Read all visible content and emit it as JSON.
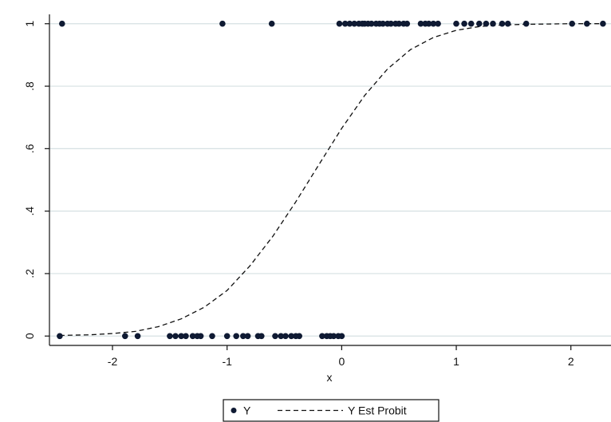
{
  "chart_data": {
    "type": "scatter",
    "xlabel": "x",
    "ylabel": "",
    "xlim": [
      -2.55,
      2.35
    ],
    "ylim": [
      -0.03,
      1.03
    ],
    "x_ticks": [
      -2,
      -1,
      0,
      1,
      2
    ],
    "x_tick_labels": [
      "-2",
      "-1",
      "0",
      "1",
      "2"
    ],
    "y_ticks": [
      0,
      0.2,
      0.4,
      0.6,
      0.8,
      1
    ],
    "y_tick_labels": [
      "0",
      ".2",
      ".4",
      ".6",
      ".8",
      "1"
    ],
    "grid": true,
    "legend_position": "bottom",
    "series": [
      {
        "name": "Y",
        "type": "scatter",
        "color": "#0f1a33",
        "x": [
          -2.44,
          -1.04,
          -0.61,
          -0.02,
          0.03,
          0.07,
          0.11,
          0.15,
          0.18,
          0.2,
          0.23,
          0.26,
          0.3,
          0.33,
          0.36,
          0.4,
          0.43,
          0.47,
          0.5,
          0.54,
          0.57,
          0.69,
          0.73,
          0.76,
          0.8,
          0.84,
          1.0,
          1.07,
          1.13,
          1.2,
          1.26,
          1.32,
          1.4,
          1.45,
          1.61,
          2.01,
          2.14,
          2.28,
          -2.46,
          -1.89,
          -1.78,
          -1.5,
          -1.45,
          -1.4,
          -1.36,
          -1.3,
          -1.26,
          -1.23,
          -1.13,
          -1.0,
          -0.92,
          -0.86,
          -0.82,
          -0.73,
          -0.7,
          -0.58,
          -0.53,
          -0.49,
          -0.44,
          -0.4,
          -0.37,
          -0.17,
          -0.13,
          -0.1,
          -0.07,
          -0.03,
          0.0
        ],
        "y": [
          1,
          1,
          1,
          1,
          1,
          1,
          1,
          1,
          1,
          1,
          1,
          1,
          1,
          1,
          1,
          1,
          1,
          1,
          1,
          1,
          1,
          1,
          1,
          1,
          1,
          1,
          1,
          1,
          1,
          1,
          1,
          1,
          1,
          1,
          1,
          1,
          1,
          1,
          0,
          0,
          0,
          0,
          0,
          0,
          0,
          0,
          0,
          0,
          0,
          0,
          0,
          0,
          0,
          0,
          0,
          0,
          0,
          0,
          0,
          0,
          0,
          0,
          0,
          0,
          0,
          0,
          0
        ]
      },
      {
        "name": "Y Est Probit",
        "type": "line",
        "style": "dashed",
        "color": "#111111",
        "x": [
          -2.46,
          -2.2,
          -2.0,
          -1.8,
          -1.6,
          -1.4,
          -1.2,
          -1.0,
          -0.8,
          -0.6,
          -0.4,
          -0.2,
          0.0,
          0.2,
          0.4,
          0.6,
          0.8,
          1.0,
          1.2,
          1.4,
          1.6,
          1.8,
          2.0,
          2.2,
          2.3
        ],
        "y": [
          0.002,
          0.004,
          0.008,
          0.015,
          0.03,
          0.055,
          0.092,
          0.146,
          0.225,
          0.32,
          0.43,
          0.548,
          0.665,
          0.77,
          0.855,
          0.917,
          0.956,
          0.979,
          0.991,
          0.996,
          0.998,
          0.999,
          1.0,
          1.0,
          1.0
        ]
      }
    ]
  }
}
